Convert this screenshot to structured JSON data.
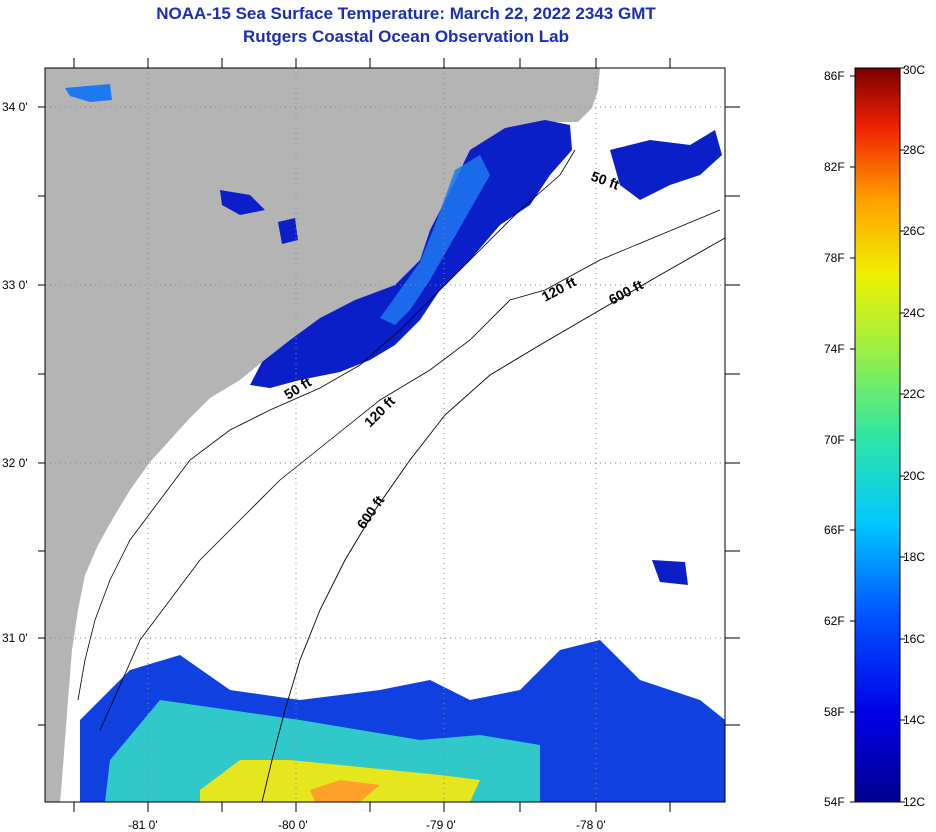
{
  "header": {
    "title": "NOAA-15 Sea Surface Temperature:  March 22, 2022 2343 GMT",
    "subtitle": "Rutgers Coastal Ocean Observation Lab"
  },
  "map": {
    "lat_labels": [
      "34 0'",
      "33 0'",
      "32 0'",
      "31 0'"
    ],
    "lon_labels": [
      "-81 0'",
      "-80 0'",
      "-79 0'",
      "-78 0'"
    ],
    "contour_labels": [
      "50 ft",
      "120 ft",
      "600 ft",
      "50 ft",
      "120 ft",
      "600 ft"
    ],
    "colors": {
      "land": "#b4b4b4",
      "cloud": "#ffffff",
      "cold_water": "#0a1fc8",
      "mid_water": "#1e78f0",
      "warm_water": "#e6e61e"
    }
  },
  "colorbar": {
    "fahrenheit_labels": [
      "86F",
      "82F",
      "78F",
      "74F",
      "70F",
      "66F",
      "62F",
      "58F",
      "54F"
    ],
    "celsius_labels": [
      "30C",
      "28C",
      "26C",
      "24C",
      "22C",
      "20C",
      "18C",
      "16C",
      "14C",
      "12C"
    ],
    "range_c": [
      12,
      30
    ]
  }
}
